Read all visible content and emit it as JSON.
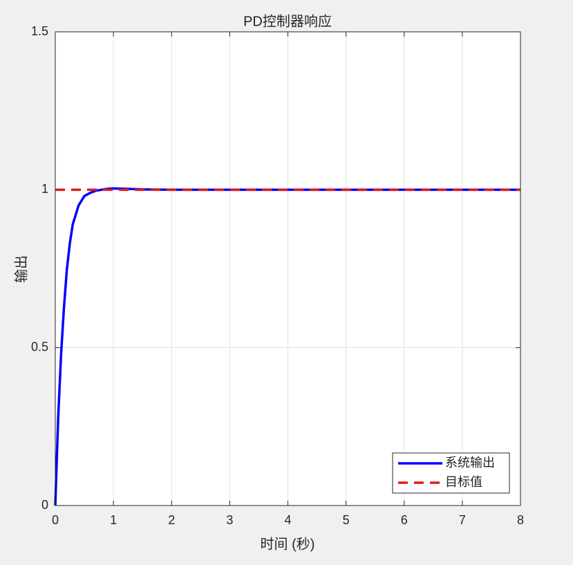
{
  "chart_data": {
    "type": "line",
    "title": "PD控制器响应",
    "x_label": "时间 (秒)",
    "y_label": "输出",
    "series": [
      {
        "name": "系统输出",
        "color": "#0000ff",
        "linestyle": "solid",
        "x": [
          0,
          0.05,
          0.1,
          0.15,
          0.2,
          0.25,
          0.3,
          0.4,
          0.5,
          0.6,
          0.7,
          0.8,
          0.9,
          1.0,
          1.2,
          1.5,
          2,
          3,
          4,
          5,
          6,
          7,
          8
        ],
        "values": [
          0,
          0.28,
          0.48,
          0.63,
          0.75,
          0.83,
          0.89,
          0.95,
          0.98,
          0.99,
          0.997,
          1.0,
          1.003,
          1.004,
          1.003,
          1.001,
          1,
          1,
          1,
          1,
          1,
          1,
          1
        ]
      },
      {
        "name": "目标值",
        "color": "#e01b1b",
        "linestyle": "dashed",
        "x": [
          0,
          8
        ],
        "values": [
          1,
          1
        ]
      }
    ],
    "xlim": [
      0,
      8
    ],
    "xticks": [
      0,
      1,
      2,
      3,
      4,
      5,
      6,
      7,
      8
    ],
    "ylim": [
      0,
      1.5
    ],
    "yticks": [
      0,
      0.5,
      1,
      1.5
    ],
    "grid": true,
    "legend": "lower right"
  }
}
